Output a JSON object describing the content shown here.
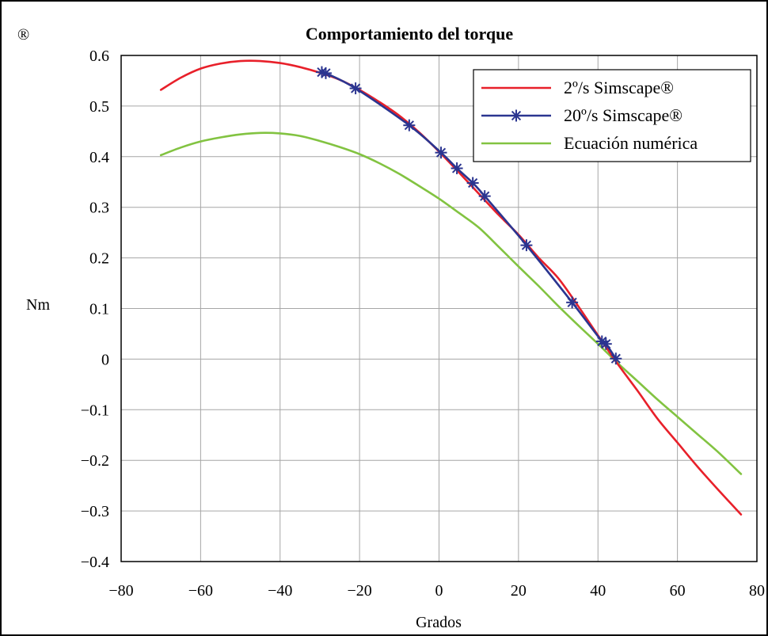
{
  "corner_mark": "®",
  "chart_data": {
    "type": "line",
    "title": "Comportamiento del torque",
    "xlabel": "Grados",
    "ylabel": "Nm",
    "xlim": [
      -80,
      80
    ],
    "ylim": [
      -0.4,
      0.6
    ],
    "xticks": [
      -80,
      -60,
      -40,
      -20,
      0,
      20,
      40,
      60,
      80
    ],
    "xtick_labels": [
      "−80",
      "−60",
      "−40",
      "−20",
      "0",
      "20",
      "40",
      "60",
      "80"
    ],
    "yticks": [
      -0.4,
      -0.3,
      -0.2,
      -0.1,
      0,
      0.1,
      0.2,
      0.3,
      0.4,
      0.5,
      0.6
    ],
    "ytick_labels": [
      "−0.4",
      "−0.3",
      "−0.2",
      "−0.1",
      "0",
      "0.1",
      "0.2",
      "0.3",
      "0.4",
      "0.5",
      "0.6"
    ],
    "grid": true,
    "legend_position": "top-right",
    "series": [
      {
        "name": "2º/s Simscape®",
        "color": "#e8202a",
        "marker": "none",
        "x": [
          -70,
          -65,
          -60,
          -55,
          -50,
          -45,
          -40,
          -35,
          -30,
          -25,
          -20,
          -15,
          -10,
          -5,
          0,
          5,
          10,
          15,
          20,
          25,
          30,
          35,
          40,
          45,
          50,
          55,
          60,
          65,
          70,
          76
        ],
        "y": [
          0.532,
          0.556,
          0.574,
          0.584,
          0.589,
          0.589,
          0.585,
          0.577,
          0.566,
          0.552,
          0.532,
          0.508,
          0.481,
          0.448,
          0.41,
          0.369,
          0.327,
          0.285,
          0.246,
          0.201,
          0.16,
          0.105,
          0.047,
          -0.01,
          -0.063,
          -0.118,
          -0.165,
          -0.212,
          -0.256,
          -0.307
        ]
      },
      {
        "name": "20º/s Simscape®",
        "color": "#2b3590",
        "marker": "asterisk",
        "x": [
          -29.5,
          -28.5,
          -21,
          -7.5,
          0.5,
          4.5,
          8.5,
          11.5,
          22,
          33.5,
          41,
          42,
          44.5
        ],
        "y": [
          0.567,
          0.565,
          0.535,
          0.462,
          0.408,
          0.377,
          0.348,
          0.322,
          0.225,
          0.112,
          0.035,
          0.03,
          0.001
        ]
      },
      {
        "name": "Ecuación numérica",
        "color": "#82c341",
        "marker": "none",
        "x": [
          -70,
          -65,
          -60,
          -55,
          -50,
          -45,
          -40,
          -35,
          -30,
          -25,
          -20,
          -15,
          -10,
          -5,
          0,
          5,
          10,
          15,
          20,
          25,
          30,
          35,
          40,
          45,
          50,
          55,
          60,
          65,
          70,
          76
        ],
        "y": [
          0.403,
          0.418,
          0.43,
          0.438,
          0.444,
          0.447,
          0.446,
          0.441,
          0.431,
          0.419,
          0.405,
          0.387,
          0.366,
          0.342,
          0.317,
          0.289,
          0.26,
          0.222,
          0.183,
          0.145,
          0.105,
          0.067,
          0.03,
          -0.008,
          -0.044,
          -0.08,
          -0.114,
          -0.148,
          -0.182,
          -0.227
        ]
      }
    ]
  }
}
